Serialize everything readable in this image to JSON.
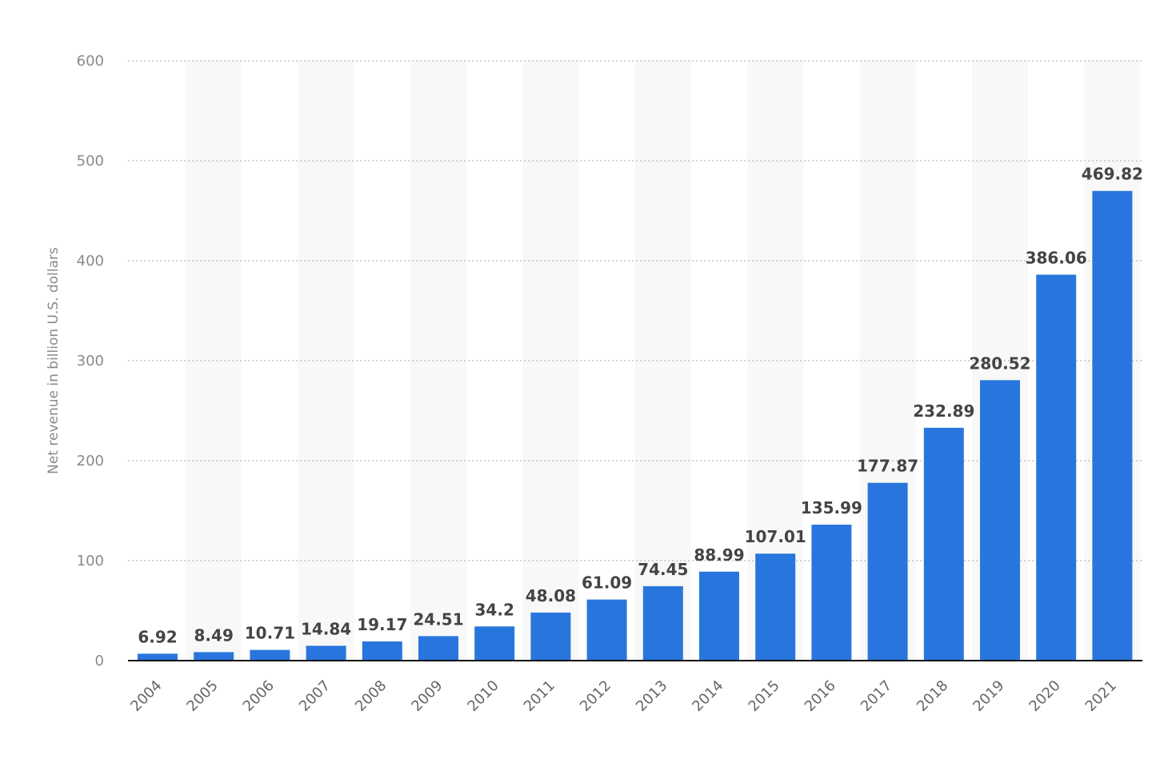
{
  "chart_data": {
    "type": "bar",
    "title": "",
    "xlabel": "",
    "ylabel": "Net revenue in billion U.S. dollars",
    "categories": [
      "2004",
      "2005",
      "2006",
      "2007",
      "2008",
      "2009",
      "2010",
      "2011",
      "2012",
      "2013",
      "2014",
      "2015",
      "2016",
      "2017",
      "2018",
      "2019",
      "2020",
      "2021"
    ],
    "series": [
      {
        "values": [
          6.92,
          8.49,
          10.71,
          14.84,
          19.17,
          24.51,
          34.2,
          48.08,
          61.09,
          74.45,
          88.99,
          107.01,
          135.99,
          177.87,
          232.89,
          280.52,
          386.06,
          469.82
        ],
        "color": "#2876dd"
      }
    ],
    "ylim": [
      0,
      600
    ],
    "yticks": [
      0,
      100,
      200,
      300,
      400,
      500,
      600
    ],
    "grid": true,
    "legend": "none",
    "data_labels": true
  }
}
